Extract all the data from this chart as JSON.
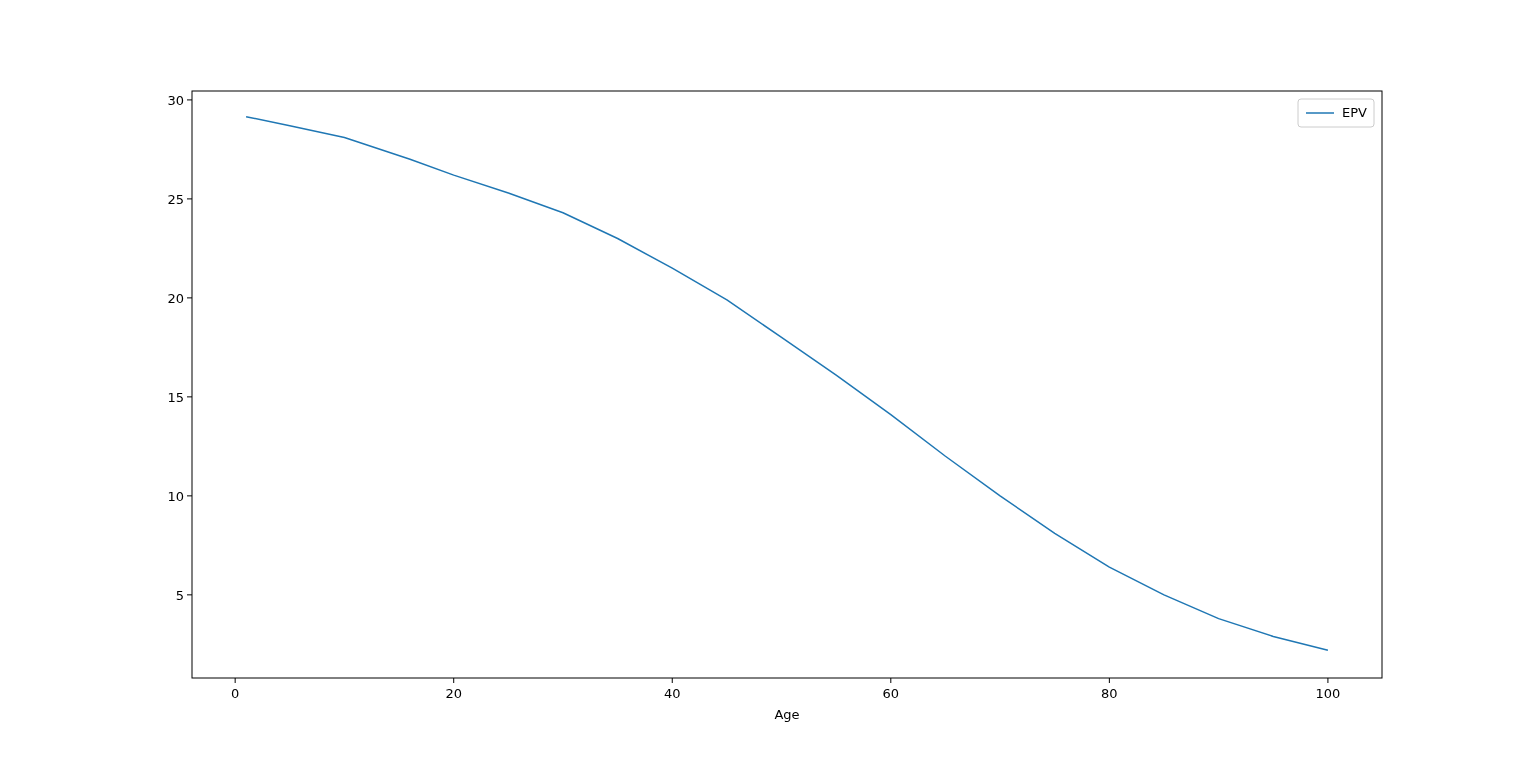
{
  "chart_data": {
    "type": "line",
    "xlabel": "Age",
    "x": [
      1,
      5,
      10,
      16,
      20,
      25,
      30,
      35,
      40,
      45,
      50,
      55,
      60,
      65,
      70,
      75,
      80,
      85,
      90,
      95,
      100
    ],
    "series": [
      {
        "name": "EPV",
        "color": "#1f77b4",
        "values": [
          29.15,
          28.7,
          28.1,
          27.0,
          26.2,
          25.3,
          24.3,
          23.0,
          21.5,
          19.9,
          18.0,
          16.1,
          14.1,
          12.0,
          10.0,
          8.1,
          6.4,
          5.0,
          3.8,
          2.9,
          2.2
        ]
      }
    ],
    "xlim": [
      -3.95,
      104.95
    ],
    "ylim": [
      0.8,
      30.45
    ],
    "xticks": [
      0,
      20,
      40,
      60,
      80,
      100
    ],
    "yticks": [
      5,
      10,
      15,
      20,
      25,
      30
    ],
    "grid": false,
    "legend": "top right"
  }
}
